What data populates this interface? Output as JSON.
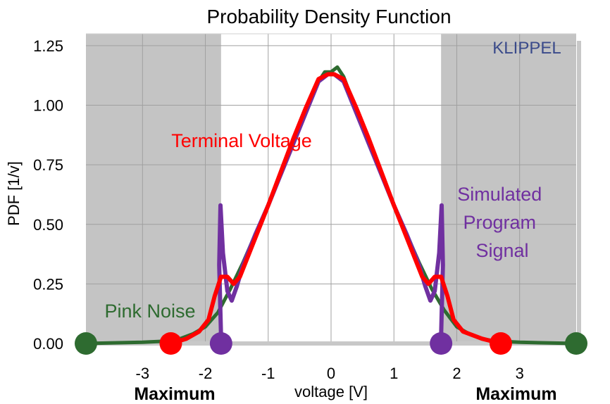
{
  "chart_data": {
    "type": "line",
    "title": "Probability Density Function",
    "xlabel": "voltage [V]",
    "ylabel": "PDF  [1/v]",
    "xlim": [
      -3.9,
      3.9
    ],
    "ylim": [
      0,
      1.3
    ],
    "x_ticks": [
      "-3",
      "-2",
      "-1",
      "0",
      "1",
      "2",
      "3"
    ],
    "y_ticks": [
      "0.00",
      "0.25",
      "0.50",
      "0.75",
      "1.00",
      "1.25"
    ],
    "grid": true,
    "brand": "KLIPPEL",
    "shaded_regions": [
      {
        "x": [
          -3.9,
          -1.75
        ]
      },
      {
        "x": [
          1.75,
          3.9
        ]
      }
    ],
    "boundary_labels": [
      {
        "text": "Maximum",
        "x": -2.6
      },
      {
        "text": "Maximum",
        "x": 2.7
      }
    ],
    "series": [
      {
        "name": "Pink Noise",
        "color": "#2e6b30",
        "label_color": "#2e6b30",
        "x": [
          -3.9,
          -3.0,
          -2.6,
          -2.4,
          -2.2,
          -2.0,
          -1.8,
          -1.6,
          -1.4,
          -1.2,
          -1.0,
          -0.8,
          -0.6,
          -0.4,
          -0.2,
          -0.1,
          0.0,
          0.1,
          0.2,
          0.4,
          0.6,
          0.8,
          1.0,
          1.2,
          1.4,
          1.6,
          1.8,
          2.0,
          2.2,
          2.4,
          2.6,
          3.0,
          3.9
        ],
        "y": [
          0.0,
          0.005,
          0.01,
          0.02,
          0.04,
          0.07,
          0.13,
          0.23,
          0.34,
          0.46,
          0.58,
          0.71,
          0.84,
          0.98,
          1.1,
          1.14,
          1.14,
          1.16,
          1.12,
          0.98,
          0.84,
          0.71,
          0.58,
          0.46,
          0.34,
          0.23,
          0.14,
          0.07,
          0.04,
          0.02,
          0.01,
          0.005,
          0.0
        ],
        "end_markers": [
          -3.9,
          3.9
        ]
      },
      {
        "name": "Simulated Program Signal",
        "color": "#7030a0",
        "label_color": "#7030a0",
        "x": [
          -1.75,
          -1.78,
          -1.76,
          -1.72,
          -1.65,
          -1.58,
          -1.5,
          -1.4,
          -1.2,
          -1.0,
          -0.8,
          -0.6,
          -0.4,
          -0.2,
          -0.05,
          0.0,
          0.05,
          0.2,
          0.4,
          0.6,
          0.8,
          1.0,
          1.2,
          1.4,
          1.5,
          1.58,
          1.65,
          1.72,
          1.76,
          1.78,
          1.75
        ],
        "y": [
          0.03,
          0.33,
          0.58,
          0.38,
          0.22,
          0.18,
          0.24,
          0.33,
          0.46,
          0.58,
          0.71,
          0.84,
          0.97,
          1.1,
          1.13,
          1.13,
          1.13,
          1.1,
          0.97,
          0.84,
          0.71,
          0.58,
          0.46,
          0.33,
          0.24,
          0.18,
          0.22,
          0.38,
          0.58,
          0.33,
          0.03
        ],
        "end_markers": [
          -1.75,
          1.75
        ]
      },
      {
        "name": "Terminal Voltage",
        "color": "#ff0000",
        "label_color": "#ff0000",
        "x": [
          -2.55,
          -2.3,
          -2.1,
          -1.95,
          -1.85,
          -1.75,
          -1.65,
          -1.55,
          -1.45,
          -1.3,
          -1.0,
          -0.8,
          -0.6,
          -0.4,
          -0.2,
          -0.05,
          0.0,
          0.05,
          0.2,
          0.4,
          0.6,
          0.8,
          1.0,
          1.3,
          1.45,
          1.55,
          1.65,
          1.75,
          1.85,
          1.95,
          2.1,
          2.4,
          2.7
        ],
        "y": [
          0.0,
          0.02,
          0.05,
          0.1,
          0.2,
          0.28,
          0.28,
          0.25,
          0.28,
          0.38,
          0.58,
          0.72,
          0.86,
          0.99,
          1.11,
          1.13,
          1.13,
          1.13,
          1.11,
          0.99,
          0.86,
          0.72,
          0.58,
          0.38,
          0.28,
          0.25,
          0.28,
          0.28,
          0.2,
          0.1,
          0.05,
          0.02,
          0.0
        ],
        "end_markers": [
          -2.55,
          2.7
        ]
      }
    ]
  }
}
